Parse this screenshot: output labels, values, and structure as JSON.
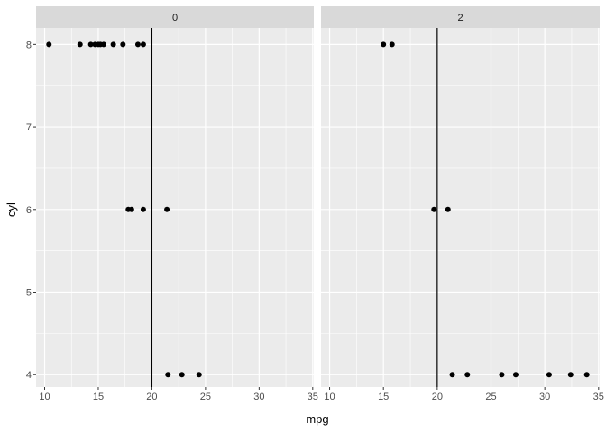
{
  "chart_data": {
    "type": "scatter",
    "xlabel": "mpg",
    "ylabel": "cyl",
    "xlim": [
      9.2,
      35.1
    ],
    "ylim": [
      3.85,
      8.2
    ],
    "x_ticks": [
      10,
      15,
      20,
      25,
      30,
      35
    ],
    "y_ticks": [
      4,
      5,
      6,
      7,
      8
    ],
    "x_tick_labels": [
      "10",
      "15",
      "20",
      "25",
      "30",
      "35"
    ],
    "y_tick_labels": [
      "4",
      "5",
      "6",
      "7",
      "8"
    ],
    "reference_line_x": 20,
    "grid": true,
    "colors": {
      "panel": "#ebebeb",
      "grid_major": "#ffffff",
      "strip": "#d9d9d9",
      "points": "#000000",
      "vline": "#000000"
    },
    "facets": [
      {
        "label": "0",
        "points": [
          {
            "x": 10.4,
            "y": 8
          },
          {
            "x": 13.3,
            "y": 8
          },
          {
            "x": 14.3,
            "y": 8
          },
          {
            "x": 14.7,
            "y": 8
          },
          {
            "x": 15.0,
            "y": 8
          },
          {
            "x": 15.2,
            "y": 8
          },
          {
            "x": 15.5,
            "y": 8
          },
          {
            "x": 16.4,
            "y": 8
          },
          {
            "x": 17.3,
            "y": 8
          },
          {
            "x": 18.7,
            "y": 8
          },
          {
            "x": 19.2,
            "y": 8
          },
          {
            "x": 17.8,
            "y": 6
          },
          {
            "x": 18.1,
            "y": 6
          },
          {
            "x": 19.2,
            "y": 6
          },
          {
            "x": 21.4,
            "y": 6
          },
          {
            "x": 21.5,
            "y": 4
          },
          {
            "x": 22.8,
            "y": 4
          },
          {
            "x": 24.4,
            "y": 4
          }
        ]
      },
      {
        "label": "2",
        "points": [
          {
            "x": 15.0,
            "y": 8
          },
          {
            "x": 15.8,
            "y": 8
          },
          {
            "x": 19.7,
            "y": 6
          },
          {
            "x": 21.0,
            "y": 6
          },
          {
            "x": 21.4,
            "y": 4
          },
          {
            "x": 22.8,
            "y": 4
          },
          {
            "x": 26.0,
            "y": 4
          },
          {
            "x": 27.3,
            "y": 4
          },
          {
            "x": 30.4,
            "y": 4
          },
          {
            "x": 32.4,
            "y": 4
          },
          {
            "x": 33.9,
            "y": 4
          }
        ]
      }
    ]
  }
}
